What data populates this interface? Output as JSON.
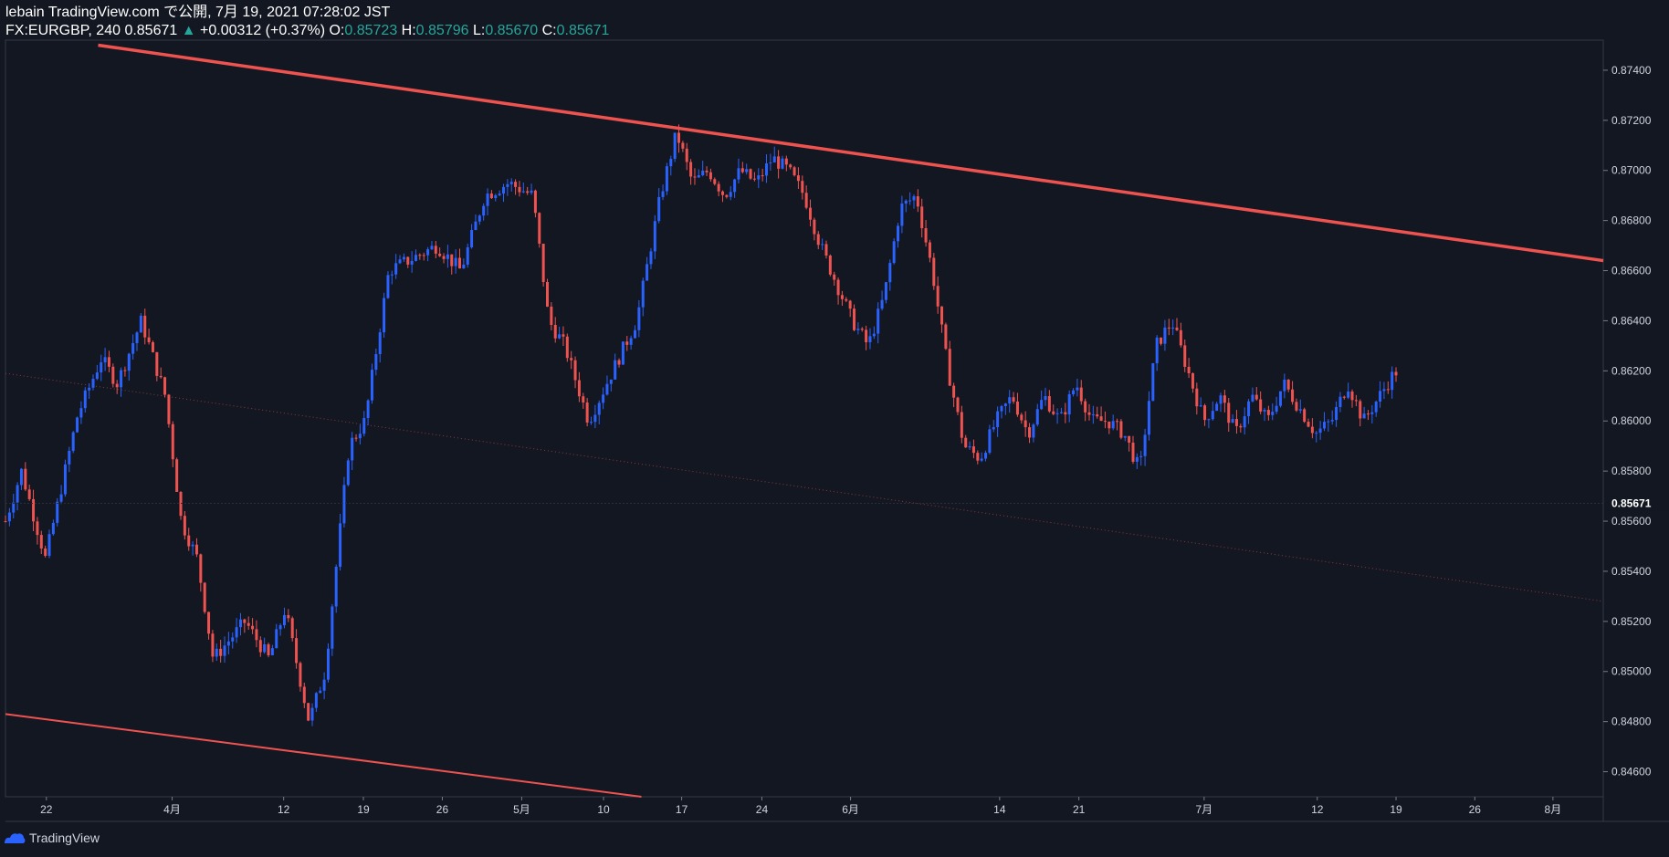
{
  "header": {
    "line1": "lebain TradingView.com で公開, 7月 19, 2021 07:28:02 JST",
    "symbol": "FX:EURGBP, 240",
    "last": "0.85671",
    "change": "+0.00312 (+0.37%)",
    "o_label": "O:",
    "o_val": "0.85723",
    "h_label": "H:",
    "h_val": "0.85796",
    "l_label": "L:",
    "l_val": "0.85670",
    "c_label": "C:",
    "c_val": "0.85671"
  },
  "footer": {
    "brand": "TradingView"
  },
  "colors": {
    "background": "#131722",
    "up": "#2962ff",
    "down": "#ef5350",
    "trendline": "#ef5350",
    "grid_text": "#d1d4dc"
  },
  "chart_data": {
    "type": "candlestick",
    "symbol": "FX:EURGBP",
    "interval": "240",
    "ylim": [
      0.845,
      0.8752
    ],
    "y_ticks": [
      0.874,
      0.872,
      0.87,
      0.868,
      0.866,
      0.864,
      0.862,
      0.86,
      0.858,
      0.856,
      0.854,
      0.852,
      0.85,
      0.848,
      0.846
    ],
    "y_tick_labels": [
      "0.87400",
      "0.87200",
      "0.87000",
      "0.86800",
      "0.86600",
      "0.86400",
      "0.86200",
      "0.86000",
      "0.85800",
      "0.85600",
      "0.85400",
      "0.85200",
      "0.85000",
      "0.84800",
      "0.84600"
    ],
    "last_price": 0.85671,
    "last_price_label": "0.85671",
    "x_ticks": [
      "22",
      "4月",
      "12",
      "19",
      "26",
      "5月",
      "10",
      "17",
      "24",
      "6月",
      "14",
      "21",
      "7月",
      "12",
      "19",
      "26",
      "8月"
    ],
    "x_tick_positions": [
      0.0256,
      0.1043,
      0.1741,
      0.224,
      0.2734,
      0.3231,
      0.3743,
      0.4232,
      0.4734,
      0.5289,
      0.6222,
      0.6718,
      0.7502,
      0.821,
      0.8703,
      0.9196,
      0.9685
    ],
    "price_path": [
      [
        0.0,
        0.856
      ],
      [
        0.01,
        0.858
      ],
      [
        0.025,
        0.8545
      ],
      [
        0.045,
        0.8602
      ],
      [
        0.06,
        0.8625
      ],
      [
        0.07,
        0.8615
      ],
      [
        0.085,
        0.864
      ],
      [
        0.1,
        0.861
      ],
      [
        0.11,
        0.856
      ],
      [
        0.12,
        0.8545
      ],
      [
        0.13,
        0.8505
      ],
      [
        0.15,
        0.852
      ],
      [
        0.165,
        0.8505
      ],
      [
        0.175,
        0.8525
      ],
      [
        0.19,
        0.848
      ],
      [
        0.2,
        0.85
      ],
      [
        0.215,
        0.859
      ],
      [
        0.225,
        0.86
      ],
      [
        0.24,
        0.866
      ],
      [
        0.255,
        0.8665
      ],
      [
        0.27,
        0.867
      ],
      [
        0.285,
        0.866
      ],
      [
        0.3,
        0.869
      ],
      [
        0.315,
        0.8695
      ],
      [
        0.33,
        0.869
      ],
      [
        0.34,
        0.864
      ],
      [
        0.35,
        0.863
      ],
      [
        0.365,
        0.86
      ],
      [
        0.38,
        0.862
      ],
      [
        0.395,
        0.864
      ],
      [
        0.41,
        0.869
      ],
      [
        0.42,
        0.8715
      ],
      [
        0.43,
        0.8695
      ],
      [
        0.44,
        0.87
      ],
      [
        0.45,
        0.869
      ],
      [
        0.46,
        0.87
      ],
      [
        0.47,
        0.8695
      ],
      [
        0.48,
        0.8705
      ],
      [
        0.49,
        0.87
      ],
      [
        0.5,
        0.869
      ],
      [
        0.51,
        0.867
      ],
      [
        0.52,
        0.8655
      ],
      [
        0.53,
        0.864
      ],
      [
        0.54,
        0.863
      ],
      [
        0.55,
        0.865
      ],
      [
        0.56,
        0.8685
      ],
      [
        0.57,
        0.869
      ],
      [
        0.58,
        0.866
      ],
      [
        0.59,
        0.862
      ],
      [
        0.6,
        0.859
      ],
      [
        0.61,
        0.8585
      ],
      [
        0.62,
        0.86
      ],
      [
        0.63,
        0.861
      ],
      [
        0.64,
        0.8595
      ],
      [
        0.65,
        0.861
      ],
      [
        0.66,
        0.86
      ],
      [
        0.67,
        0.8615
      ],
      [
        0.68,
        0.86
      ],
      [
        0.69,
        0.86
      ],
      [
        0.7,
        0.8595
      ],
      [
        0.71,
        0.858
      ],
      [
        0.72,
        0.863
      ],
      [
        0.73,
        0.864
      ],
      [
        0.74,
        0.862
      ],
      [
        0.75,
        0.86
      ],
      [
        0.76,
        0.861
      ],
      [
        0.77,
        0.8595
      ],
      [
        0.78,
        0.861
      ],
      [
        0.79,
        0.86
      ],
      [
        0.8,
        0.8615
      ],
      [
        0.81,
        0.8605
      ],
      [
        0.82,
        0.8595
      ],
      [
        0.83,
        0.86
      ],
      [
        0.84,
        0.8615
      ],
      [
        0.85,
        0.86
      ],
      [
        0.86,
        0.861
      ],
      [
        0.87,
        0.862
      ],
      [
        0.88,
        0.861
      ],
      [
        0.89,
        0.859
      ],
      [
        0.9,
        0.857
      ],
      [
        0.91,
        0.858
      ],
      [
        0.92,
        0.856
      ],
      [
        0.93,
        0.855
      ],
      [
        0.94,
        0.8545
      ],
      [
        0.95,
        0.856
      ],
      [
        0.96,
        0.857
      ],
      [
        0.97,
        0.854
      ],
      [
        0.98,
        0.8545
      ],
      [
        0.99,
        0.858
      ],
      [
        1.0,
        0.86
      ]
    ],
    "trendlines": [
      {
        "x1": 0.058,
        "y1": 0.875,
        "x2": 1.0,
        "y2": 0.8664,
        "width": 3.5,
        "style": "solid"
      },
      {
        "x1": 0.0,
        "y1": 0.8483,
        "x2": 0.398,
        "y2": 0.845,
        "width": 2,
        "style": "solid"
      },
      {
        "x1": 0.0,
        "y1": 0.8619,
        "x2": 1.0,
        "y2": 0.8528,
        "width": 1,
        "style": "dotted"
      }
    ]
  }
}
